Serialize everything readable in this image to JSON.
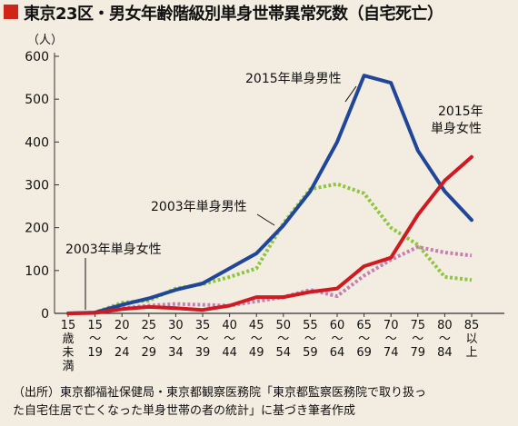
{
  "title": "東京23区・男女年齢階級別単身世帯異常死数（自宅死亡）",
  "colors": {
    "title_square": "#d02418",
    "male_2015": "#1f4698",
    "female_2015": "#cf1a22",
    "male_2003": "#8dc63f",
    "female_2003": "#c77fb2"
  },
  "chart_data": {
    "type": "line",
    "title": "東京23区・男女年齢階級別単身世帯異常死数（自宅死亡）",
    "ylabel": "（人）",
    "xlabel": "",
    "ylim": [
      0,
      600
    ],
    "yticks": [
      "0",
      "100",
      "200",
      "300",
      "400",
      "500",
      "600"
    ],
    "grid": false,
    "categories": [
      "15歳未満",
      "15〜19",
      "20〜24",
      "25〜29",
      "30〜34",
      "35〜39",
      "40〜44",
      "45〜49",
      "50〜54",
      "55〜59",
      "60〜64",
      "65〜69",
      "70〜74",
      "75〜79",
      "80〜84",
      "85以上"
    ],
    "x_tick_labels": [
      [
        "15",
        "歳",
        "未",
        "満"
      ],
      [
        "15",
        "〜",
        "19"
      ],
      [
        "20",
        "〜",
        "24"
      ],
      [
        "25",
        "〜",
        "29"
      ],
      [
        "30",
        "〜",
        "34"
      ],
      [
        "35",
        "〜",
        "39"
      ],
      [
        "40",
        "〜",
        "44"
      ],
      [
        "45",
        "〜",
        "49"
      ],
      [
        "50",
        "〜",
        "54"
      ],
      [
        "55",
        "〜",
        "59"
      ],
      [
        "60",
        "〜",
        "64"
      ],
      [
        "65",
        "〜",
        "69"
      ],
      [
        "70",
        "〜",
        "74"
      ],
      [
        "75",
        "〜",
        "79"
      ],
      [
        "80",
        "〜",
        "84"
      ],
      [
        "85",
        "以",
        "上"
      ]
    ],
    "series": [
      {
        "name": "2015年単身男性",
        "style": "solid",
        "color": "#1f4698",
        "values": [
          0,
          2,
          20,
          35,
          55,
          70,
          105,
          140,
          205,
          285,
          400,
          555,
          538,
          380,
          285,
          218
        ]
      },
      {
        "name": "2015年単身女性",
        "style": "solid",
        "color": "#cf1a22",
        "values": [
          0,
          1,
          10,
          15,
          12,
          8,
          18,
          38,
          38,
          50,
          58,
          110,
          130,
          230,
          310,
          365
        ]
      },
      {
        "name": "2003年単身男性",
        "style": "dotted",
        "color": "#8dc63f",
        "values": [
          0,
          2,
          25,
          30,
          58,
          68,
          85,
          105,
          210,
          290,
          302,
          280,
          200,
          160,
          85,
          78
        ]
      },
      {
        "name": "2003年単身女性",
        "style": "dotted",
        "color": "#c77fb2",
        "values": [
          0,
          1,
          12,
          18,
          22,
          20,
          18,
          28,
          38,
          55,
          40,
          88,
          125,
          155,
          142,
          135
        ]
      }
    ]
  },
  "annotations": {
    "male_2015": "2015年単身男性",
    "female_2015_line1": "2015年",
    "female_2015_line2": "単身女性",
    "male_2003": "2003年単身男性",
    "female_2003": "2003年単身女性"
  },
  "source": {
    "line1": "（出所）東京都福祉保健局・東京都観察医務院「東京都監察医務院で取り扱っ",
    "line2": "た自宅住居で亡くなった単身世帯の者の統計」に基づき筆者作成"
  }
}
